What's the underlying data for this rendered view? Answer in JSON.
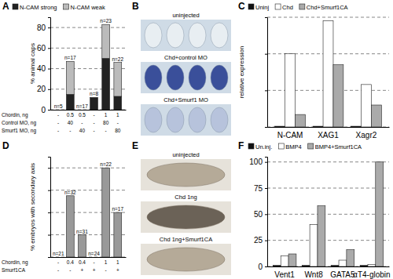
{
  "chart_data": [
    {
      "title": "A",
      "type": "bar",
      "stacked": true,
      "categories": [
        null,
        null,
        null,
        null,
        null,
        null
      ],
      "series": [
        {
          "name": "N-CAM strong",
          "color": "#222222",
          "values": [
            0,
            15,
            0,
            12,
            50,
            13
          ]
        },
        {
          "name": "N-CAM weak",
          "color": "#bbbbbb",
          "values": [
            0,
            32,
            0,
            0,
            33,
            33
          ]
        }
      ],
      "y_label": "% animal caps",
      "ylim": [
        0,
        90
      ],
      "yticks": [
        0,
        20,
        40,
        60,
        80
      ],
      "grid": true,
      "legend": "top",
      "tick_labels": "y",
      "annotations": [
        "n=5",
        "n=17",
        "n=17",
        "n=8",
        "n=23",
        "n=22"
      ],
      "table": {
        "row_labels": [
          "Chordin, ng",
          "Control MO, ng",
          "Smurf1 MO, ng"
        ],
        "rows": [
          [
            "-",
            "0.5",
            "0.5",
            "-",
            "1",
            "1"
          ],
          [
            "-",
            "40",
            "-",
            "-",
            "80",
            "-"
          ],
          [
            "-",
            "-",
            "40",
            "-",
            "-",
            "80"
          ]
        ]
      }
    },
    {
      "title": "C",
      "type": "bar",
      "categories": [
        "N-CAM",
        "XAG1",
        "Xagr2"
      ],
      "series": [
        {
          "name": "Uninj",
          "color": "#111111",
          "values": [
            1,
            1,
            1
          ]
        },
        {
          "name": "Chd",
          "color": "#ffffff",
          "values": [
            100,
            145,
            58
          ]
        },
        {
          "name": "Chd+Smurf1CA",
          "color": "#aaaaaa",
          "values": [
            17,
            85,
            30
          ]
        }
      ],
      "y_label": "relative expression",
      "ylim": [
        0,
        150
      ],
      "yticks": [
        0,
        50,
        100,
        150
      ],
      "grid": true,
      "legend": "top",
      "tick_labels": "x"
    },
    {
      "title": "D",
      "type": "bar",
      "categories": [
        null,
        null,
        null,
        null,
        null,
        null
      ],
      "values": [
        0,
        55,
        20,
        0,
        80,
        40
      ],
      "color": "#999999",
      "y_label": "% embryos with secondary axis",
      "ylim": [
        0,
        90
      ],
      "yticks": [
        0,
        20,
        40,
        60,
        80
      ],
      "grid": true,
      "tick_labels": false,
      "annotations": [
        "n=21",
        "n=32",
        "n=31",
        "n=24",
        "n=22",
        "n=17"
      ],
      "table": {
        "row_labels": [
          "Chordin, ng",
          "Smurf1CA"
        ],
        "rows": [
          [
            "-",
            "0.4",
            "0.4",
            "-",
            "1",
            "1"
          ],
          [
            "-",
            "-",
            "+",
            "+",
            "-",
            "+"
          ]
        ]
      }
    },
    {
      "title": "F",
      "type": "bar",
      "categories": [
        "Vent1",
        "Wnt8",
        "GATA5",
        "αT4-globin"
      ],
      "series": [
        {
          "name": "Un.inj.",
          "color": "#111111",
          "values": [
            1,
            1,
            1,
            1
          ]
        },
        {
          "name": "BMP4",
          "color": "#ffffff",
          "values": [
            10,
            40,
            6,
            2
          ]
        },
        {
          "name": "BMP4+Smurf1CA",
          "color": "#aaaaaa",
          "values": [
            12,
            58,
            16,
            100
          ]
        }
      ],
      "ylim": [
        0,
        105
      ],
      "yticks": [
        0,
        25,
        50,
        75,
        100
      ],
      "grid": true,
      "legend": "top",
      "tick_labels": true
    }
  ],
  "images": [
    {
      "title": "B",
      "captions": [
        "uninjected",
        "Chd+control MO",
        "Chd+Smurf1 MO"
      ]
    },
    {
      "title": "E",
      "captions": [
        "uninjected",
        "Chd 1ng",
        "Chd 1ng+Smurf1CA"
      ]
    }
  ]
}
